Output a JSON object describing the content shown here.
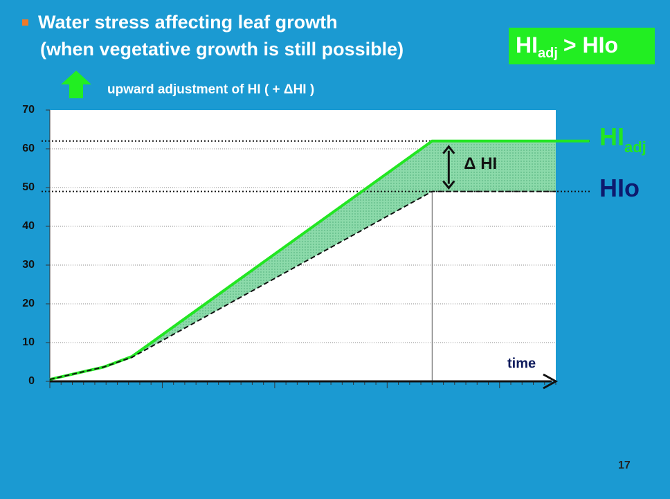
{
  "chart_data": {
    "type": "line",
    "title": "Water stress affecting leaf growth",
    "title_line2": "(when vegetative growth is still possible)",
    "subtitle": "upward adjustment of HI ( + ΔHI )",
    "badge": {
      "main": "HI",
      "sub": "adj",
      "rest": "> HIo"
    },
    "x_label": "time",
    "delta_label": "Δ HI",
    "page_number": "17",
    "xlim": [
      0,
      45
    ],
    "ylim": [
      0,
      70
    ],
    "yticks": [
      0,
      10,
      20,
      30,
      40,
      50,
      60,
      70
    ],
    "grid": true,
    "reference_lines": {
      "y": [
        62,
        49
      ],
      "x": 34
    },
    "series": [
      {
        "name": "HI",
        "name_sub": "adj",
        "color": "#22e622",
        "x": [
          0,
          4.8,
          7.3,
          34,
          48
        ],
        "values": [
          0.5,
          3.7,
          6.4,
          62,
          62
        ]
      },
      {
        "name": "HIo",
        "color": "#111111",
        "x": [
          0,
          4.8,
          7.3,
          34,
          45
        ],
        "values": [
          0.5,
          3.7,
          6.2,
          49,
          49
        ]
      }
    ]
  }
}
